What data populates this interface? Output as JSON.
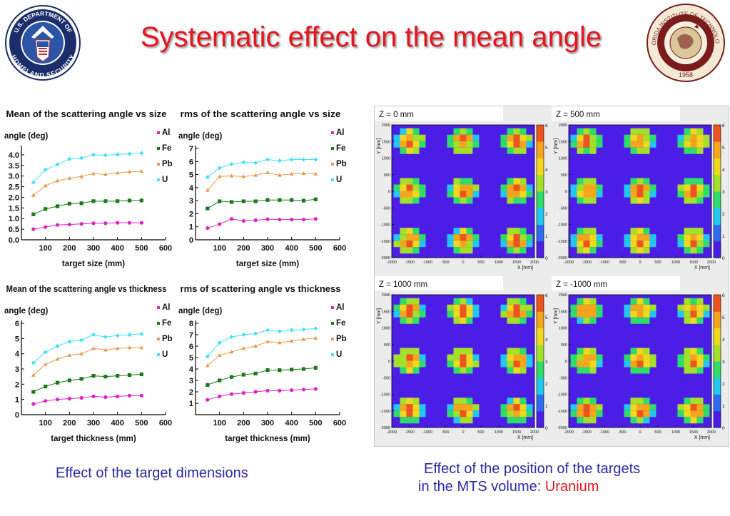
{
  "title": "Systematic effect on the mean angle",
  "logos": {
    "left_text_top": "U.S. DEPARTMENT OF",
    "left_text_bottom": "HOMELAND SECURITY",
    "right_text_top": "FLORIDA INSTITUTE OF TECHNOLOGY",
    "right_year": "1958"
  },
  "captions": {
    "left": "Effect of the target dimensions",
    "right_line1": "Effect of the position of the targets",
    "right_line2_prefix": "in the MTS volume: ",
    "right_line2_highlight": "Uranium"
  },
  "colors": {
    "Al": "#e020c8",
    "Fe": "#1a7a1a",
    "Pb": "#e89a50",
    "U": "#40e0ff",
    "title": "#e8141e",
    "caption": "#2b2ba8"
  },
  "chart_data": [
    {
      "type": "line",
      "title": "Mean of the scattering angle vs size",
      "ylabel": "angle (deg)",
      "xlabel": "target size (mm)",
      "xlim": [
        0,
        600
      ],
      "ylim": [
        0,
        4.3
      ],
      "yticks": [
        "0.0",
        "0.5",
        "1.0",
        "1.5",
        "2.0",
        "2.5",
        "3.0",
        "3.5",
        "4.0"
      ],
      "ytick_values": [
        0,
        0.5,
        1,
        1.5,
        2,
        2.5,
        3,
        3.5,
        4
      ],
      "xticks": [
        "100",
        "200",
        "300",
        "400",
        "500",
        "600"
      ],
      "xtick_values": [
        100,
        200,
        300,
        400,
        500,
        600
      ],
      "x": [
        50,
        100,
        150,
        200,
        250,
        300,
        350,
        400,
        450,
        500
      ],
      "series": [
        {
          "name": "Al",
          "values": [
            0.5,
            0.6,
            0.7,
            0.72,
            0.75,
            0.78,
            0.78,
            0.8,
            0.8,
            0.8
          ]
        },
        {
          "name": "Fe",
          "values": [
            1.2,
            1.45,
            1.58,
            1.7,
            1.72,
            1.82,
            1.82,
            1.82,
            1.85,
            1.85
          ]
        },
        {
          "name": "Pb",
          "values": [
            2.1,
            2.55,
            2.78,
            2.9,
            2.98,
            3.12,
            3.08,
            3.15,
            3.2,
            3.22
          ]
        },
        {
          "name": "U",
          "values": [
            2.7,
            3.3,
            3.55,
            3.8,
            3.85,
            4.0,
            3.98,
            4.02,
            4.05,
            4.08
          ]
        }
      ]
    },
    {
      "type": "line",
      "title": "rms of the scattering angle vs size",
      "ylabel": "angle (deg)",
      "xlabel": "target size (mm)",
      "xlim": [
        0,
        600
      ],
      "ylim": [
        0,
        7
      ],
      "yticks": [
        "0",
        "1",
        "2",
        "3",
        "4",
        "5",
        "6",
        "7"
      ],
      "ytick_values": [
        0,
        1,
        2,
        3,
        4,
        5,
        6,
        7
      ],
      "xticks": [
        "100",
        "200",
        "300",
        "400",
        "500",
        "600"
      ],
      "xtick_values": [
        100,
        200,
        300,
        400,
        500,
        600
      ],
      "x": [
        50,
        100,
        150,
        200,
        250,
        300,
        350,
        400,
        450,
        500
      ],
      "series": [
        {
          "name": "Al",
          "values": [
            0.9,
            1.2,
            1.6,
            1.45,
            1.5,
            1.58,
            1.55,
            1.55,
            1.55,
            1.6
          ]
        },
        {
          "name": "Fe",
          "values": [
            2.4,
            2.95,
            2.9,
            2.95,
            2.95,
            3.05,
            3.05,
            3.05,
            3.0,
            3.1
          ]
        },
        {
          "name": "Pb",
          "values": [
            3.8,
            4.85,
            4.9,
            4.85,
            4.95,
            5.15,
            4.95,
            5.05,
            5.1,
            5.05
          ]
        },
        {
          "name": "U",
          "values": [
            4.8,
            5.5,
            5.8,
            5.95,
            5.9,
            6.15,
            6.05,
            6.15,
            6.15,
            6.15
          ]
        }
      ]
    },
    {
      "type": "line",
      "title": "Mean of the scattering angle vs thickness",
      "ylabel": "angle (deg)",
      "xlabel": "target thickness (mm)",
      "xlim": [
        0,
        600
      ],
      "ylim": [
        0,
        6
      ],
      "yticks": [
        "0",
        "1",
        "2",
        "3",
        "4",
        "5",
        "6"
      ],
      "ytick_values": [
        0,
        1,
        2,
        3,
        4,
        5,
        6
      ],
      "xticks": [
        "100",
        "200",
        "300",
        "400",
        "500",
        "600"
      ],
      "xtick_values": [
        100,
        200,
        300,
        400,
        500,
        600
      ],
      "x": [
        50,
        100,
        150,
        200,
        250,
        300,
        350,
        400,
        450,
        500
      ],
      "series": [
        {
          "name": "Al",
          "values": [
            0.7,
            0.9,
            1.0,
            1.05,
            1.1,
            1.2,
            1.15,
            1.2,
            1.25,
            1.25
          ]
        },
        {
          "name": "Fe",
          "values": [
            1.5,
            1.85,
            2.1,
            2.25,
            2.35,
            2.55,
            2.5,
            2.55,
            2.6,
            2.65
          ]
        },
        {
          "name": "Pb",
          "values": [
            2.6,
            3.3,
            3.65,
            3.9,
            4.0,
            4.35,
            4.25,
            4.35,
            4.4,
            4.4
          ]
        },
        {
          "name": "U",
          "values": [
            3.4,
            4.1,
            4.5,
            4.8,
            4.9,
            5.25,
            5.1,
            5.2,
            5.25,
            5.3
          ]
        }
      ]
    },
    {
      "type": "line",
      "title": "rms of scattering angle vs thickness",
      "ylabel": "angle (deg)",
      "xlabel": "target thickness (mm)",
      "xlim": [
        0,
        600
      ],
      "ylim": [
        0,
        8
      ],
      "yticks": [
        "1",
        "2",
        "3",
        "4",
        "5",
        "6",
        "7",
        "8"
      ],
      "ytick_values": [
        1,
        2,
        3,
        4,
        5,
        6,
        7,
        8
      ],
      "xticks": [
        "100",
        "200",
        "300",
        "400",
        "500",
        "600"
      ],
      "xtick_values": [
        100,
        200,
        300,
        400,
        500,
        600
      ],
      "x": [
        50,
        100,
        150,
        200,
        250,
        300,
        350,
        400,
        450,
        500
      ],
      "series": [
        {
          "name": "Al",
          "values": [
            1.3,
            1.6,
            1.8,
            1.9,
            2.0,
            2.1,
            2.1,
            2.15,
            2.2,
            2.25
          ]
        },
        {
          "name": "Fe",
          "values": [
            2.6,
            3.0,
            3.3,
            3.5,
            3.6,
            3.9,
            3.9,
            3.95,
            4.0,
            4.1
          ]
        },
        {
          "name": "Pb",
          "values": [
            4.3,
            5.2,
            5.5,
            5.8,
            6.0,
            6.4,
            6.3,
            6.45,
            6.6,
            6.7
          ]
        },
        {
          "name": "U",
          "values": [
            5.1,
            6.3,
            6.8,
            7.0,
            7.1,
            7.4,
            7.3,
            7.4,
            7.45,
            7.55
          ]
        }
      ]
    },
    {
      "type": "heatmap",
      "title": "Z = 0 mm",
      "xlabel": "X [mm]",
      "ylabel": "Y [mm]",
      "xticks": [
        "-2000",
        "-1500",
        "-1000",
        "-500",
        "0",
        "500",
        "1000",
        "1500",
        "2000"
      ],
      "yticks": [
        "-2000",
        "-1500",
        "-1000",
        "-500",
        "0",
        "500",
        "1000",
        "1500",
        "2000"
      ],
      "colorbar_ticks": [
        "0",
        "1",
        "2",
        "3",
        "4",
        "5",
        "6"
      ],
      "blob_centers_mm": [
        [
          -1500,
          1500
        ],
        [
          0,
          1500
        ],
        [
          1500,
          1500
        ],
        [
          -1500,
          0
        ],
        [
          0,
          0
        ],
        [
          1500,
          0
        ],
        [
          -1500,
          -1500
        ],
        [
          0,
          -1500
        ],
        [
          1500,
          -1500
        ]
      ]
    },
    {
      "type": "heatmap",
      "title": "Z = 500 mm",
      "xlabel": "X [mm]",
      "ylabel": "Y [mm]",
      "xticks": [
        "-2000",
        "-1500",
        "-1000",
        "-500",
        "0",
        "500",
        "1000",
        "1500",
        "2000"
      ],
      "yticks": [
        "-2000",
        "-1500",
        "-1000",
        "-500",
        "0",
        "500",
        "1000",
        "1500",
        "2000"
      ],
      "colorbar_ticks": [
        "0",
        "1",
        "2",
        "3",
        "4",
        "5",
        "6"
      ],
      "blob_centers_mm": [
        [
          -1500,
          1500
        ],
        [
          0,
          1500
        ],
        [
          1500,
          1500
        ],
        [
          -1500,
          0
        ],
        [
          0,
          0
        ],
        [
          1500,
          0
        ],
        [
          -1500,
          -1500
        ],
        [
          0,
          -1500
        ],
        [
          1500,
          -1500
        ]
      ]
    },
    {
      "type": "heatmap",
      "title": "Z = 1000 mm",
      "xlabel": "X [mm]",
      "ylabel": "Y [mm]",
      "xticks": [
        "-2000",
        "-1500",
        "-1000",
        "-500",
        "0",
        "500",
        "1000",
        "1500",
        "2000"
      ],
      "yticks": [
        "-2000",
        "-1500",
        "-1000",
        "-500",
        "0",
        "500",
        "1000",
        "1500",
        "2000"
      ],
      "colorbar_ticks": [
        "0",
        "1",
        "2",
        "3",
        "4",
        "5",
        "6"
      ],
      "blob_centers_mm": [
        [
          -1500,
          1500
        ],
        [
          0,
          1500
        ],
        [
          1500,
          1500
        ],
        [
          -1500,
          0
        ],
        [
          0,
          0
        ],
        [
          1500,
          0
        ],
        [
          -1500,
          -1500
        ],
        [
          0,
          -1500
        ],
        [
          1500,
          -1500
        ]
      ]
    },
    {
      "type": "heatmap",
      "title": "Z = -1000 mm",
      "xlabel": "X [mm]",
      "ylabel": "Y [mm]",
      "xticks": [
        "-2000",
        "-1500",
        "-1000",
        "-500",
        "0",
        "500",
        "1000",
        "1500",
        "2000"
      ],
      "yticks": [
        "-2000",
        "-1500",
        "-1000",
        "-500",
        "0",
        "500",
        "1000",
        "1500",
        "2000"
      ],
      "colorbar_ticks": [
        "0",
        "1",
        "2",
        "3",
        "4",
        "5",
        "6"
      ],
      "blob_centers_mm": [
        [
          -1500,
          1500
        ],
        [
          0,
          1500
        ],
        [
          1500,
          1500
        ],
        [
          -1500,
          0
        ],
        [
          0,
          0
        ],
        [
          1500,
          0
        ],
        [
          -1500,
          -1500
        ],
        [
          0,
          -1500
        ],
        [
          1500,
          -1500
        ]
      ]
    }
  ]
}
